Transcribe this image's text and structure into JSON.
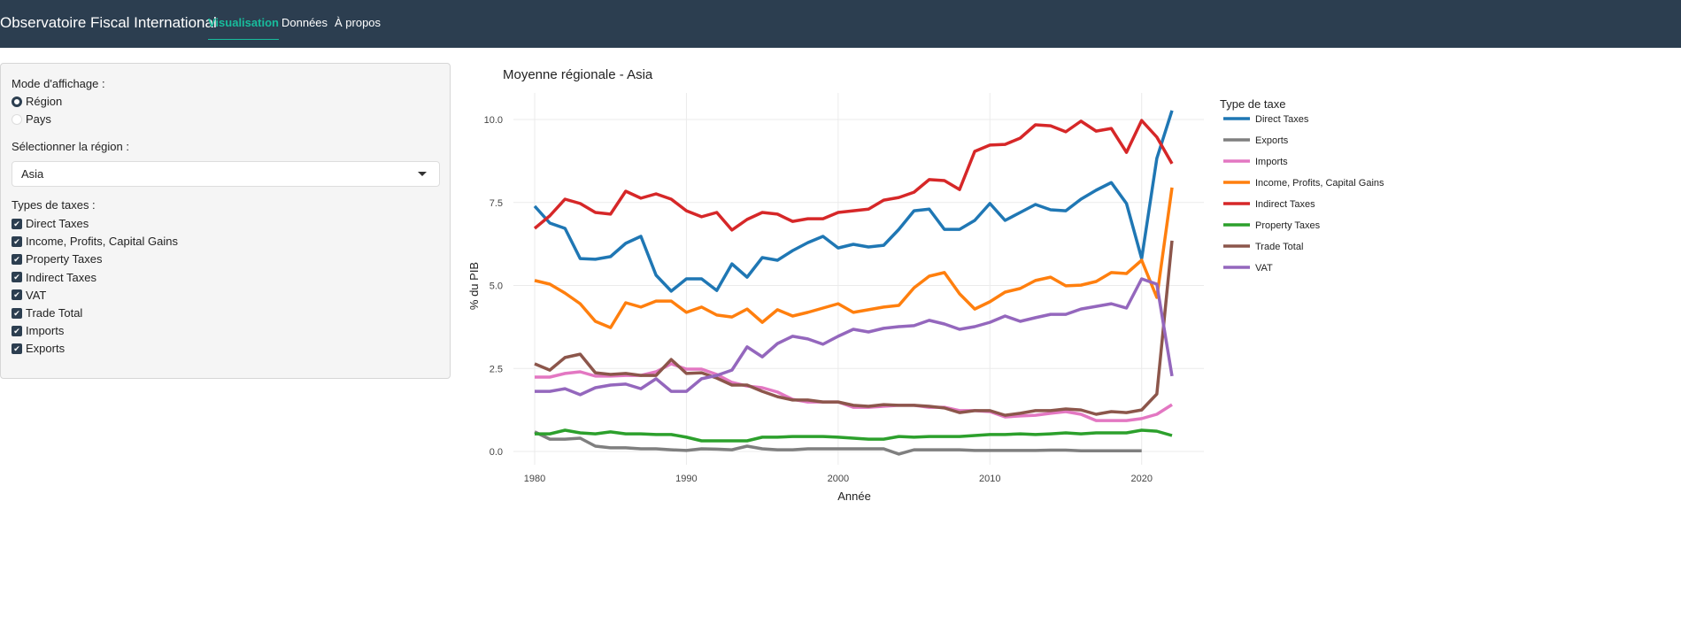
{
  "navbar": {
    "brand": "Observatoire Fiscal International",
    "links": [
      "Visualisation",
      "Données",
      "À propos"
    ],
    "active": "Visualisation",
    "bg": "#2c3e50",
    "accent": "#18bc9c"
  },
  "sidebar": {
    "mode_label": "Mode d'affichage :",
    "modes": [
      "Région",
      "Pays"
    ],
    "mode_selected": "Région",
    "region_label": "Sélectionner la région :",
    "region_value": "Asia",
    "taxes_label": "Types de taxes :",
    "taxes": [
      "Direct Taxes",
      "Income, Profits, Capital Gains",
      "Property Taxes",
      "Indirect Taxes",
      "VAT",
      "Trade Total",
      "Imports",
      "Exports"
    ],
    "taxes_checked": [
      true,
      true,
      true,
      true,
      true,
      true,
      true,
      true
    ]
  },
  "chart_data": {
    "type": "line",
    "title": "Moyenne régionale - Asia",
    "xlabel": "Année",
    "ylabel": "% du PIB",
    "legend_title": "Type de taxe",
    "legend_position": "right",
    "grid": true,
    "xlim": [
      1978.6,
      2024.1
    ],
    "ylim": [
      -0.4,
      10.8
    ],
    "xticks": [
      1980,
      1990,
      2000,
      2010,
      2020
    ],
    "yticks": [
      0,
      2.5,
      5,
      7.5,
      10
    ],
    "ytick_labels": [
      "0.0",
      "2.5",
      "5.0",
      "7.5",
      "10.0"
    ],
    "x_start": 1980,
    "series": [
      {
        "name": "Direct Taxes",
        "color": "#1f77b4",
        "values": [
          7.39,
          6.88,
          6.72,
          5.81,
          5.79,
          5.87,
          6.27,
          6.48,
          5.31,
          4.83,
          5.2,
          5.2,
          4.85,
          5.65,
          5.25,
          5.84,
          5.76,
          6.05,
          6.29,
          6.48,
          6.13,
          6.24,
          6.16,
          6.21,
          6.69,
          7.25,
          7.3,
          6.69,
          6.69,
          6.96,
          7.47,
          6.96,
          7.2,
          7.44,
          7.28,
          7.25,
          7.6,
          7.87,
          8.1,
          7.47,
          5.81,
          8.83,
          10.27
        ]
      },
      {
        "name": "Exports",
        "color": "#7f7f7f",
        "values": [
          0.59,
          0.37,
          0.37,
          0.4,
          0.16,
          0.11,
          0.11,
          0.08,
          0.08,
          0.05,
          0.03,
          0.08,
          0.07,
          0.05,
          0.16,
          0.08,
          0.05,
          0.05,
          0.08,
          0.08,
          0.08,
          0.08,
          0.08,
          0.08,
          -0.08,
          0.05,
          0.05,
          0.05,
          0.05,
          0.03,
          0.03,
          0.03,
          0.03,
          0.03,
          0.04,
          0.04,
          0.02,
          0.02,
          0.02,
          0.02,
          0.02
        ]
      },
      {
        "name": "Imports",
        "color": "#e377c2",
        "values": [
          2.24,
          2.24,
          2.35,
          2.4,
          2.27,
          2.27,
          2.29,
          2.29,
          2.4,
          2.64,
          2.48,
          2.48,
          2.32,
          2.08,
          1.97,
          1.92,
          1.79,
          1.57,
          1.49,
          1.49,
          1.49,
          1.33,
          1.33,
          1.36,
          1.39,
          1.39,
          1.33,
          1.33,
          1.23,
          1.23,
          1.2,
          1.04,
          1.07,
          1.09,
          1.15,
          1.2,
          1.12,
          0.93,
          0.93,
          0.93,
          0.99,
          1.12,
          1.41
        ]
      },
      {
        "name": "Income, Profits, Capital Gains",
        "color": "#ff7f0e",
        "values": [
          5.15,
          5.04,
          4.77,
          4.45,
          3.92,
          3.73,
          4.48,
          4.35,
          4.53,
          4.53,
          4.19,
          4.35,
          4.11,
          4.05,
          4.29,
          3.89,
          4.27,
          4.08,
          4.19,
          4.32,
          4.45,
          4.19,
          4.27,
          4.35,
          4.4,
          4.93,
          5.28,
          5.39,
          4.75,
          4.29,
          4.51,
          4.8,
          4.91,
          5.15,
          5.25,
          4.99,
          5.01,
          5.12,
          5.39,
          5.36,
          5.76,
          4.64,
          7.95
        ]
      },
      {
        "name": "Indirect Taxes",
        "color": "#d62728",
        "values": [
          6.72,
          7.1,
          7.6,
          7.47,
          7.2,
          7.15,
          7.84,
          7.63,
          7.76,
          7.6,
          7.25,
          7.07,
          7.2,
          6.67,
          6.99,
          7.2,
          7.15,
          6.93,
          7.01,
          7.01,
          7.2,
          7.25,
          7.3,
          7.57,
          7.65,
          7.81,
          8.19,
          8.16,
          7.89,
          9.04,
          9.23,
          9.25,
          9.44,
          9.84,
          9.81,
          9.63,
          9.95,
          9.65,
          9.73,
          9.01,
          9.97,
          9.47,
          8.67
        ]
      },
      {
        "name": "Property Taxes",
        "color": "#2ca02c",
        "values": [
          0.53,
          0.53,
          0.64,
          0.56,
          0.53,
          0.59,
          0.53,
          0.53,
          0.51,
          0.51,
          0.43,
          0.32,
          0.32,
          0.32,
          0.32,
          0.43,
          0.43,
          0.45,
          0.45,
          0.45,
          0.43,
          0.4,
          0.37,
          0.37,
          0.45,
          0.43,
          0.45,
          0.45,
          0.45,
          0.48,
          0.51,
          0.51,
          0.53,
          0.51,
          0.53,
          0.56,
          0.53,
          0.56,
          0.56,
          0.56,
          0.64,
          0.61,
          0.48
        ]
      },
      {
        "name": "Trade Total",
        "color": "#8c564b",
        "values": [
          2.64,
          2.45,
          2.83,
          2.93,
          2.37,
          2.32,
          2.35,
          2.29,
          2.29,
          2.77,
          2.35,
          2.37,
          2.21,
          2.0,
          2.0,
          1.81,
          1.65,
          1.55,
          1.55,
          1.49,
          1.49,
          1.39,
          1.36,
          1.41,
          1.39,
          1.39,
          1.36,
          1.31,
          1.17,
          1.23,
          1.23,
          1.09,
          1.15,
          1.23,
          1.23,
          1.28,
          1.25,
          1.12,
          1.2,
          1.17,
          1.25,
          1.73,
          6.35
        ]
      },
      {
        "name": "VAT",
        "color": "#9467bd",
        "values": [
          1.81,
          1.81,
          1.89,
          1.71,
          1.92,
          2.0,
          2.03,
          1.89,
          2.19,
          1.81,
          1.81,
          2.19,
          2.29,
          2.45,
          3.15,
          2.85,
          3.25,
          3.47,
          3.39,
          3.23,
          3.47,
          3.68,
          3.6,
          3.71,
          3.76,
          3.79,
          3.95,
          3.84,
          3.68,
          3.76,
          3.89,
          4.08,
          3.92,
          4.03,
          4.13,
          4.13,
          4.29,
          4.37,
          4.45,
          4.32,
          5.2,
          5.04,
          2.27
        ]
      }
    ]
  }
}
